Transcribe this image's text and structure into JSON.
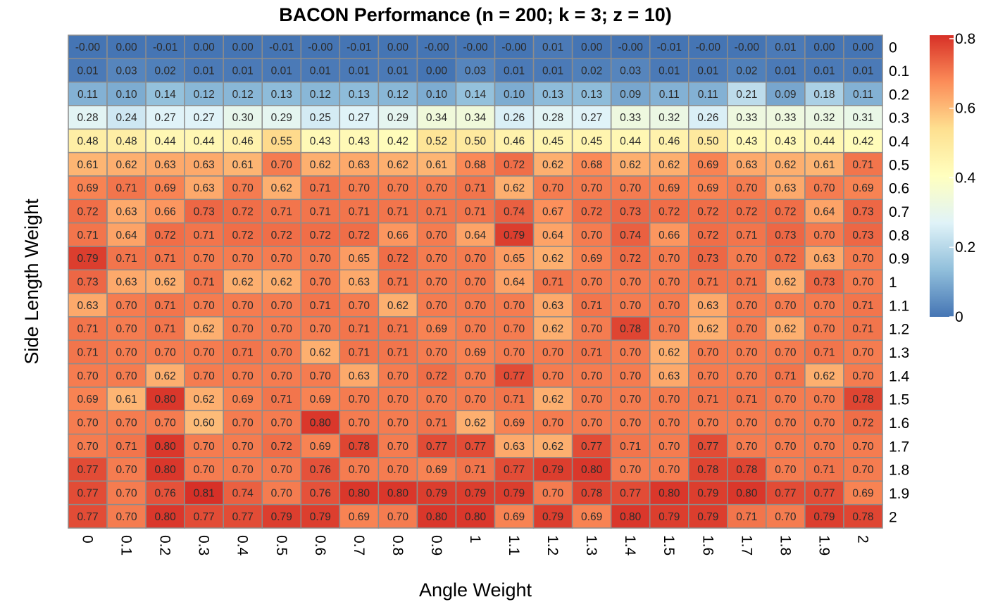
{
  "chart_data": {
    "type": "heatmap",
    "title": "BACON Performance (n = 200; k = 3; z = 10)",
    "xlabel": "Angle Weight",
    "ylabel": "Side Length Weight",
    "x_categories": [
      "0",
      "0.1",
      "0.2",
      "0.3",
      "0.4",
      "0.5",
      "0.6",
      "0.7",
      "0.8",
      "0.9",
      "1",
      "1.1",
      "1.2",
      "1.3",
      "1.4",
      "1.5",
      "1.6",
      "1.7",
      "1.8",
      "1.9",
      "2"
    ],
    "y_categories": [
      "0",
      "0.1",
      "0.2",
      "0.3",
      "0.4",
      "0.5",
      "0.6",
      "0.7",
      "0.8",
      "0.9",
      "1",
      "1.1",
      "1.2",
      "1.3",
      "1.4",
      "1.5",
      "1.6",
      "1.7",
      "1.8",
      "1.9",
      "2"
    ],
    "cell_labels": [
      [
        "-0.00",
        "0.00",
        "-0.01",
        "0.00",
        "0.00",
        "-0.01",
        "-0.00",
        "-0.01",
        "0.00",
        "-0.00",
        "-0.00",
        "-0.00",
        "0.01",
        "0.00",
        "-0.00",
        "-0.01",
        "-0.00",
        "-0.00",
        "0.01",
        "0.00",
        "0.00"
      ],
      [
        "0.01",
        "0.03",
        "0.02",
        "0.01",
        "0.01",
        "0.01",
        "0.01",
        "0.01",
        "0.01",
        "0.00",
        "0.03",
        "0.01",
        "0.01",
        "0.02",
        "0.03",
        "0.01",
        "0.01",
        "0.02",
        "0.01",
        "0.01",
        "0.01"
      ],
      [
        "0.11",
        "0.10",
        "0.14",
        "0.12",
        "0.12",
        "0.13",
        "0.12",
        "0.13",
        "0.12",
        "0.10",
        "0.14",
        "0.10",
        "0.13",
        "0.13",
        "0.09",
        "0.11",
        "0.11",
        "0.21",
        "0.09",
        "0.18",
        "0.11"
      ],
      [
        "0.28",
        "0.24",
        "0.27",
        "0.27",
        "0.30",
        "0.29",
        "0.25",
        "0.27",
        "0.29",
        "0.34",
        "0.34",
        "0.26",
        "0.28",
        "0.27",
        "0.33",
        "0.32",
        "0.26",
        "0.33",
        "0.33",
        "0.32",
        "0.31"
      ],
      [
        "0.48",
        "0.48",
        "0.44",
        "0.44",
        "0.46",
        "0.55",
        "0.43",
        "0.43",
        "0.42",
        "0.52",
        "0.50",
        "0.46",
        "0.45",
        "0.45",
        "0.44",
        "0.46",
        "0.50",
        "0.43",
        "0.43",
        "0.44",
        "0.42"
      ],
      [
        "0.61",
        "0.62",
        "0.63",
        "0.63",
        "0.61",
        "0.70",
        "0.62",
        "0.63",
        "0.62",
        "0.61",
        "0.68",
        "0.72",
        "0.62",
        "0.68",
        "0.62",
        "0.62",
        "0.69",
        "0.63",
        "0.62",
        "0.61",
        "0.71"
      ],
      [
        "0.69",
        "0.71",
        "0.69",
        "0.63",
        "0.70",
        "0.62",
        "0.71",
        "0.70",
        "0.70",
        "0.70",
        "0.71",
        "0.62",
        "0.70",
        "0.70",
        "0.70",
        "0.69",
        "0.69",
        "0.70",
        "0.63",
        "0.70",
        "0.69"
      ],
      [
        "0.72",
        "0.63",
        "0.66",
        "0.73",
        "0.72",
        "0.71",
        "0.71",
        "0.71",
        "0.71",
        "0.71",
        "0.71",
        "0.74",
        "0.67",
        "0.72",
        "0.73",
        "0.72",
        "0.72",
        "0.72",
        "0.72",
        "0.64",
        "0.73"
      ],
      [
        "0.71",
        "0.64",
        "0.72",
        "0.71",
        "0.72",
        "0.72",
        "0.72",
        "0.72",
        "0.66",
        "0.70",
        "0.64",
        "0.79",
        "0.64",
        "0.70",
        "0.74",
        "0.66",
        "0.72",
        "0.71",
        "0.73",
        "0.70",
        "0.73"
      ],
      [
        "0.79",
        "0.71",
        "0.71",
        "0.70",
        "0.70",
        "0.70",
        "0.70",
        "0.65",
        "0.72",
        "0.70",
        "0.70",
        "0.65",
        "0.62",
        "0.69",
        "0.72",
        "0.70",
        "0.73",
        "0.70",
        "0.72",
        "0.63",
        "0.70"
      ],
      [
        "0.73",
        "0.63",
        "0.62",
        "0.71",
        "0.62",
        "0.62",
        "0.70",
        "0.63",
        "0.71",
        "0.70",
        "0.70",
        "0.64",
        "0.71",
        "0.70",
        "0.70",
        "0.70",
        "0.71",
        "0.71",
        "0.62",
        "0.73",
        "0.70"
      ],
      [
        "0.63",
        "0.70",
        "0.71",
        "0.70",
        "0.70",
        "0.70",
        "0.71",
        "0.70",
        "0.62",
        "0.70",
        "0.70",
        "0.70",
        "0.63",
        "0.71",
        "0.70",
        "0.70",
        "0.63",
        "0.70",
        "0.70",
        "0.70",
        "0.71"
      ],
      [
        "0.71",
        "0.70",
        "0.71",
        "0.62",
        "0.70",
        "0.70",
        "0.70",
        "0.71",
        "0.71",
        "0.69",
        "0.70",
        "0.70",
        "0.62",
        "0.70",
        "0.78",
        "0.70",
        "0.62",
        "0.70",
        "0.62",
        "0.70",
        "0.71"
      ],
      [
        "0.71",
        "0.70",
        "0.70",
        "0.70",
        "0.71",
        "0.70",
        "0.62",
        "0.71",
        "0.71",
        "0.70",
        "0.69",
        "0.70",
        "0.70",
        "0.71",
        "0.70",
        "0.62",
        "0.70",
        "0.70",
        "0.70",
        "0.71",
        "0.70"
      ],
      [
        "0.70",
        "0.70",
        "0.62",
        "0.70",
        "0.70",
        "0.70",
        "0.70",
        "0.63",
        "0.70",
        "0.72",
        "0.70",
        "0.77",
        "0.70",
        "0.70",
        "0.70",
        "0.63",
        "0.70",
        "0.70",
        "0.71",
        "0.62",
        "0.70"
      ],
      [
        "0.69",
        "0.61",
        "0.80",
        "0.62",
        "0.69",
        "0.71",
        "0.69",
        "0.70",
        "0.70",
        "0.70",
        "0.70",
        "0.71",
        "0.62",
        "0.70",
        "0.70",
        "0.70",
        "0.71",
        "0.71",
        "0.70",
        "0.70",
        "0.78"
      ],
      [
        "0.70",
        "0.70",
        "0.70",
        "0.60",
        "0.70",
        "0.70",
        "0.80",
        "0.70",
        "0.70",
        "0.71",
        "0.62",
        "0.69",
        "0.70",
        "0.70",
        "0.70",
        "0.70",
        "0.70",
        "0.70",
        "0.70",
        "0.70",
        "0.72"
      ],
      [
        "0.70",
        "0.71",
        "0.80",
        "0.70",
        "0.70",
        "0.72",
        "0.69",
        "0.78",
        "0.70",
        "0.77",
        "0.77",
        "0.63",
        "0.62",
        "0.77",
        "0.71",
        "0.70",
        "0.77",
        "0.70",
        "0.70",
        "0.70",
        "0.70"
      ],
      [
        "0.77",
        "0.70",
        "0.80",
        "0.70",
        "0.70",
        "0.70",
        "0.76",
        "0.70",
        "0.70",
        "0.69",
        "0.71",
        "0.77",
        "0.79",
        "0.80",
        "0.70",
        "0.70",
        "0.78",
        "0.78",
        "0.70",
        "0.71",
        "0.70"
      ],
      [
        "0.77",
        "0.70",
        "0.76",
        "0.81",
        "0.74",
        "0.70",
        "0.76",
        "0.80",
        "0.80",
        "0.79",
        "0.79",
        "0.79",
        "0.70",
        "0.78",
        "0.77",
        "0.80",
        "0.79",
        "0.80",
        "0.77",
        "0.77",
        "0.69"
      ],
      [
        "0.77",
        "0.70",
        "0.80",
        "0.77",
        "0.77",
        "0.79",
        "0.79",
        "0.69",
        "0.70",
        "0.80",
        "0.80",
        "0.69",
        "0.79",
        "0.69",
        "0.80",
        "0.79",
        "0.79",
        "0.71",
        "0.70",
        "0.79",
        "0.78"
      ]
    ],
    "color_scale": {
      "min": 0,
      "max": 0.81,
      "palette": "RdYlBu (reversed)",
      "stops": [
        "#4575b4",
        "#91bfdb",
        "#e0f3f8",
        "#ffffbf",
        "#fee090",
        "#fc8d59",
        "#d73027"
      ],
      "ticks": [
        "0",
        "0.2",
        "0.4",
        "0.6",
        "0.8"
      ]
    },
    "legend_placement": "right",
    "grid": true,
    "cell_border_color": "#8c8c8c"
  }
}
